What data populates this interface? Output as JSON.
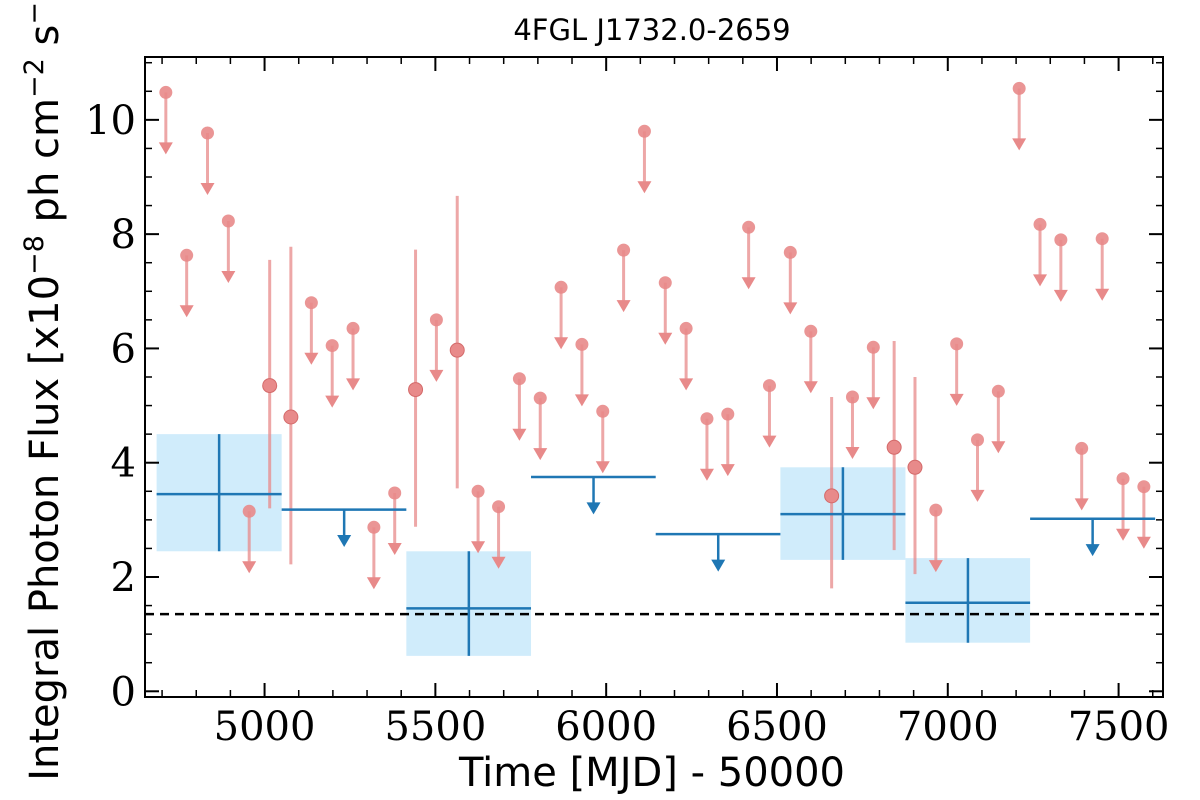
{
  "chart_data": {
    "type": "scatter",
    "title": "4FGL J1732.0-2659",
    "xlabel": "Time [MJD] - 50000",
    "ylabel": "Integral Photon Flux [x10",
    "ylabel_exp": "−8",
    "ylabel_mid": " ph cm",
    "ylabel_exp2": "−2",
    "ylabel_mid2": " s",
    "ylabel_exp3": "−1",
    "ylabel_end": "]",
    "xlim": [
      4650,
      7630
    ],
    "ylim": [
      -0.1,
      11.1
    ],
    "xticks": [
      5000,
      5500,
      6000,
      6500,
      7000,
      7500
    ],
    "yticks": [
      0,
      2,
      4,
      6,
      8,
      10
    ],
    "grid": false,
    "reference_line": {
      "y": 1.35,
      "style": "dashed",
      "color": "#000000"
    },
    "colors": {
      "coarse": "#1f77b4",
      "coarse_band": "#d0ecfb",
      "fine": "#e88a8a"
    },
    "coarse_bins": {
      "detections": [
        {
          "x": 4867,
          "x_lo": 4684,
          "x_hi": 5050,
          "y": 3.45,
          "y_lo": 2.45,
          "y_hi": 4.5
        },
        {
          "x": 5598,
          "x_lo": 5415,
          "x_hi": 5780,
          "y": 1.45,
          "y_lo": 0.62,
          "y_hi": 2.45
        },
        {
          "x": 6693,
          "x_lo": 6510,
          "x_hi": 6876,
          "y": 3.1,
          "y_lo": 2.3,
          "y_hi": 3.92
        },
        {
          "x": 7059,
          "x_lo": 6876,
          "x_hi": 7241,
          "y": 1.55,
          "y_lo": 0.85,
          "y_hi": 2.33
        }
      ],
      "upper_limits": [
        {
          "x": 5233,
          "x_lo": 5050,
          "x_hi": 5415,
          "y": 3.18
        },
        {
          "x": 5963,
          "x_lo": 5780,
          "x_hi": 6145,
          "y": 3.75
        },
        {
          "x": 6328,
          "x_lo": 6145,
          "x_hi": 6510,
          "y": 2.75
        },
        {
          "x": 7424,
          "x_lo": 7241,
          "x_hi": 7607,
          "y": 3.02
        }
      ]
    },
    "fine_bins": {
      "detections": [
        {
          "x": 5015,
          "y": 5.35,
          "y_lo": 3.2,
          "y_hi": 7.55
        },
        {
          "x": 5077,
          "y": 4.8,
          "y_lo": 2.22,
          "y_hi": 7.78
        },
        {
          "x": 5442,
          "y": 5.28,
          "y_lo": 2.88,
          "y_hi": 7.73
        },
        {
          "x": 5564,
          "y": 5.97,
          "y_lo": 3.55,
          "y_hi": 8.67
        },
        {
          "x": 6660,
          "y": 3.42,
          "y_lo": 1.8,
          "y_hi": 5.15
        },
        {
          "x": 6843,
          "y": 4.27,
          "y_lo": 2.47,
          "y_hi": 6.13
        },
        {
          "x": 6904,
          "y": 3.92,
          "y_lo": 2.05,
          "y_hi": 5.5
        }
      ],
      "upper_limits": [
        {
          "x": 4711,
          "y": 10.48
        },
        {
          "x": 4772,
          "y": 7.63
        },
        {
          "x": 4833,
          "y": 9.77
        },
        {
          "x": 4894,
          "y": 8.23
        },
        {
          "x": 4955,
          "y": 3.15
        },
        {
          "x": 5137,
          "y": 6.8
        },
        {
          "x": 5198,
          "y": 6.05
        },
        {
          "x": 5259,
          "y": 6.35
        },
        {
          "x": 5320,
          "y": 2.87
        },
        {
          "x": 5381,
          "y": 3.47
        },
        {
          "x": 5503,
          "y": 6.5
        },
        {
          "x": 5625,
          "y": 3.5
        },
        {
          "x": 5685,
          "y": 3.23
        },
        {
          "x": 5746,
          "y": 5.47
        },
        {
          "x": 5807,
          "y": 5.13
        },
        {
          "x": 5868,
          "y": 7.07
        },
        {
          "x": 5929,
          "y": 6.07
        },
        {
          "x": 5990,
          "y": 4.9
        },
        {
          "x": 6051,
          "y": 7.72
        },
        {
          "x": 6112,
          "y": 9.8
        },
        {
          "x": 6173,
          "y": 7.15
        },
        {
          "x": 6234,
          "y": 6.35
        },
        {
          "x": 6295,
          "y": 4.77
        },
        {
          "x": 6356,
          "y": 4.85
        },
        {
          "x": 6417,
          "y": 8.12
        },
        {
          "x": 6478,
          "y": 5.35
        },
        {
          "x": 6539,
          "y": 7.68
        },
        {
          "x": 6599,
          "y": 6.3
        },
        {
          "x": 6721,
          "y": 5.15
        },
        {
          "x": 6782,
          "y": 6.02
        },
        {
          "x": 6965,
          "y": 3.17
        },
        {
          "x": 7026,
          "y": 6.08
        },
        {
          "x": 7087,
          "y": 4.4
        },
        {
          "x": 7148,
          "y": 5.25
        },
        {
          "x": 7209,
          "y": 10.55
        },
        {
          "x": 7270,
          "y": 8.17
        },
        {
          "x": 7331,
          "y": 7.9
        },
        {
          "x": 7392,
          "y": 4.25
        },
        {
          "x": 7452,
          "y": 7.92
        },
        {
          "x": 7513,
          "y": 3.72
        },
        {
          "x": 7574,
          "y": 3.58
        }
      ]
    }
  }
}
